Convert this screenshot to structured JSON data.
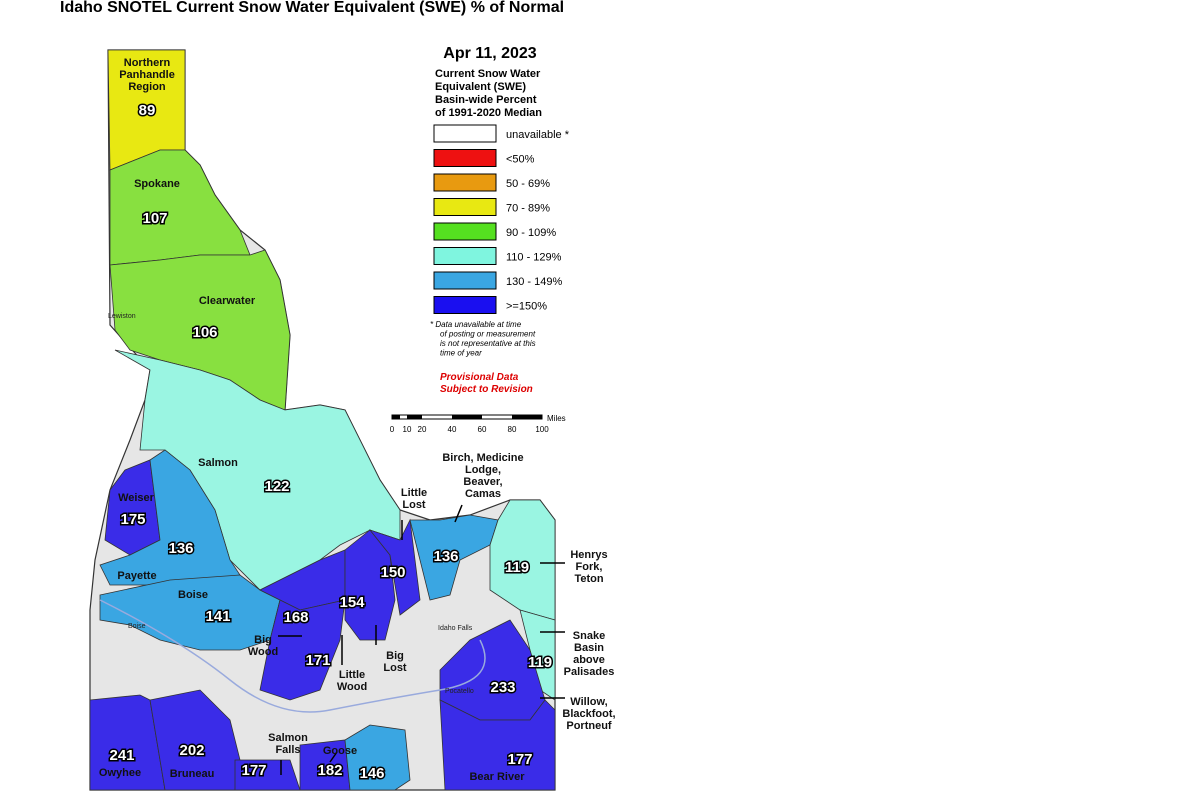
{
  "title": "Idaho SNOTEL Current Snow Water Equivalent (SWE) % of Normal",
  "date": "Apr 11, 2023",
  "legend": {
    "title": [
      "Current Snow Water",
      "Equivalent (SWE)",
      "Basin-wide Percent",
      "of 1991-2020 Median"
    ],
    "items": [
      {
        "label": "unavailable *",
        "color": "#ffffff"
      },
      {
        "label": "<50%",
        "color": "#ee1111"
      },
      {
        "label": "50 - 69%",
        "color": "#e89a10"
      },
      {
        "label": "70 - 89%",
        "color": "#e8e812"
      },
      {
        "label": "90 - 109%",
        "color": "#55e020"
      },
      {
        "label": "110 - 129%",
        "color": "#7ff5df"
      },
      {
        "label": "130 - 149%",
        "color": "#3aa6e2"
      },
      {
        "label": ">=150%",
        "color": "#1a0ff0"
      }
    ],
    "note": [
      "*  Data unavailable at time",
      "of posting or measurement",
      "is not representative at this",
      "time of year"
    ],
    "provisional": [
      "Provisional Data",
      "Subject to Revision"
    ]
  },
  "scale": {
    "unit": "Miles",
    "ticks": [
      "0",
      "10",
      "20",
      "40",
      "60",
      "80",
      "100"
    ]
  },
  "basin_values": [
    {
      "value": "89",
      "color": "#e8e812"
    },
    {
      "value": "107",
      "color": "#88e040"
    },
    {
      "value": "106",
      "color": "#88e040"
    },
    {
      "value": "122",
      "color": "#9af5e2"
    },
    {
      "value": "175",
      "color": "#3a2ce8"
    },
    {
      "value": "136",
      "color": "#3aa6e2"
    },
    {
      "value": "141",
      "color": "#3aa6e2"
    },
    {
      "value": "168",
      "color": "#3a2ce8"
    },
    {
      "value": "171",
      "color": "#3a2ce8"
    },
    {
      "value": "154",
      "color": "#3a2ce8"
    },
    {
      "value": "150",
      "color": "#3a2ce8"
    },
    {
      "value": "136",
      "color": "#3aa6e2"
    },
    {
      "value": "119",
      "color": "#9af5e2"
    },
    {
      "value": "119",
      "color": "#9af5e2"
    },
    {
      "value": "233",
      "color": "#3a2ce8"
    },
    {
      "value": "177",
      "color": "#3a2ce8"
    },
    {
      "value": "241",
      "color": "#3a2ce8"
    },
    {
      "value": "202",
      "color": "#3a2ce8"
    },
    {
      "value": "177",
      "color": "#3a2ce8"
    },
    {
      "value": "182",
      "color": "#3a2ce8"
    },
    {
      "value": "146",
      "color": "#3aa6e2"
    }
  ],
  "basin_labels": [
    [
      "Northern",
      "Panhandle",
      "Region"
    ],
    [
      "Spokane"
    ],
    [
      "Clearwater"
    ],
    [
      "Salmon"
    ],
    [
      "Weiser"
    ],
    [
      "Payette"
    ],
    [
      "Boise"
    ],
    [
      "Big",
      "Wood"
    ],
    [
      "Little",
      "Wood"
    ],
    [
      "Big",
      "Lost"
    ],
    [
      "Little",
      "Lost"
    ],
    [
      "Birch, Medicine",
      "Lodge,",
      "Beaver,",
      "Camas"
    ],
    [
      "Henrys",
      "Fork,",
      "Teton"
    ],
    [
      "Snake",
      "Basin",
      "above",
      "Palisades"
    ],
    [
      "Willow,",
      "Blackfoot,",
      "Portneuf"
    ],
    [
      "Owyhee"
    ],
    [
      "Bruneau"
    ],
    [
      "Salmon",
      "Falls"
    ],
    [
      "Goose"
    ],
    [
      "Bear River"
    ]
  ],
  "cities": [
    "Lewiston",
    "Boise",
    "Idaho Falls",
    "Pocatello"
  ]
}
